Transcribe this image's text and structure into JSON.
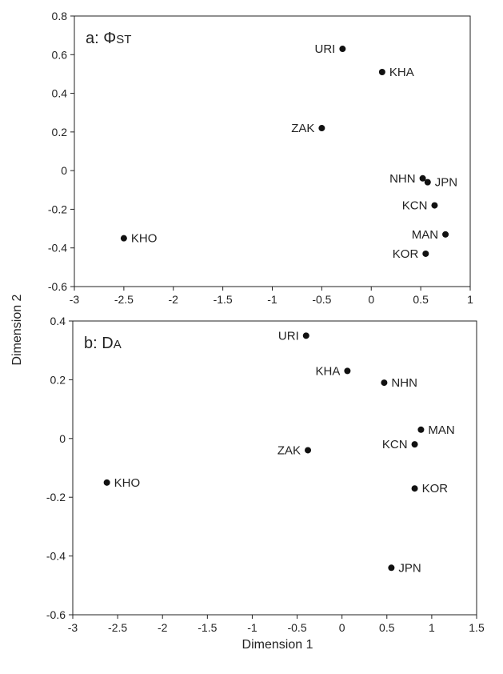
{
  "figure": {
    "ylabel": "Dimension 2",
    "xlabel": "Dimension 1"
  },
  "chart_data": [
    {
      "type": "scatter",
      "panel_label": "a: Φ",
      "panel_label_sub": "ST",
      "xlim": [
        -3,
        1
      ],
      "ylim": [
        -0.6,
        0.8
      ],
      "x_ticks": [
        -3,
        -2.5,
        -2,
        -1.5,
        -1,
        -0.5,
        0,
        0.5,
        1
      ],
      "x_tick_labels": [
        "-3",
        "-2.5",
        "-2",
        "-1.5",
        "-1",
        "-0.5",
        "0",
        "0.5",
        "1"
      ],
      "y_ticks": [
        -0.6,
        -0.4,
        -0.2,
        0,
        0.2,
        0.4,
        0.6,
        0.8
      ],
      "y_tick_labels": [
        "-0.6",
        "-0.4",
        "-0.2",
        "0",
        "0.2",
        "0.4",
        "0.6",
        "0.8"
      ],
      "grid": false,
      "points": [
        {
          "label": "URI",
          "x": -0.29,
          "y": 0.63,
          "label_side": "left"
        },
        {
          "label": "KHA",
          "x": 0.11,
          "y": 0.51,
          "label_side": "right"
        },
        {
          "label": "ZAK",
          "x": -0.5,
          "y": 0.22,
          "label_side": "left"
        },
        {
          "label": "NHN",
          "x": 0.52,
          "y": -0.04,
          "label_side": "left"
        },
        {
          "label": "JPN",
          "x": 0.57,
          "y": -0.06,
          "label_side": "right"
        },
        {
          "label": "KCN",
          "x": 0.64,
          "y": -0.18,
          "label_side": "left"
        },
        {
          "label": "MAN",
          "x": 0.75,
          "y": -0.33,
          "label_side": "left"
        },
        {
          "label": "KOR",
          "x": 0.55,
          "y": -0.43,
          "label_side": "left"
        },
        {
          "label": "KHO",
          "x": -2.5,
          "y": -0.35,
          "label_side": "right"
        }
      ]
    },
    {
      "type": "scatter",
      "panel_label": "b: D",
      "panel_label_sub": "A",
      "xlim": [
        -3,
        1.5
      ],
      "ylim": [
        -0.6,
        0.4
      ],
      "x_ticks": [
        -3,
        -2.5,
        -2,
        -1.5,
        -1,
        -0.5,
        0,
        0.5,
        1,
        1.5
      ],
      "x_tick_labels": [
        "-3",
        "-2.5",
        "-2",
        "-1.5",
        "-1",
        "-0.5",
        "0",
        "0.5",
        "1",
        "1.5"
      ],
      "y_ticks": [
        -0.6,
        -0.4,
        -0.2,
        0,
        0.2,
        0.4
      ],
      "y_tick_labels": [
        "-0.6",
        "-0.4",
        "-0.2",
        "0",
        "0.2",
        "0.4"
      ],
      "grid": false,
      "points": [
        {
          "label": "URI",
          "x": -0.4,
          "y": 0.35,
          "label_side": "left"
        },
        {
          "label": "KHA",
          "x": 0.06,
          "y": 0.23,
          "label_side": "left"
        },
        {
          "label": "NHN",
          "x": 0.47,
          "y": 0.19,
          "label_side": "right"
        },
        {
          "label": "MAN",
          "x": 0.88,
          "y": 0.03,
          "label_side": "right"
        },
        {
          "label": "KCN",
          "x": 0.81,
          "y": -0.02,
          "label_side": "left"
        },
        {
          "label": "ZAK",
          "x": -0.38,
          "y": -0.04,
          "label_side": "left"
        },
        {
          "label": "KOR",
          "x": 0.81,
          "y": -0.17,
          "label_side": "right"
        },
        {
          "label": "KHO",
          "x": -2.62,
          "y": -0.15,
          "label_side": "right"
        },
        {
          "label": "JPN",
          "x": 0.55,
          "y": -0.44,
          "label_side": "right"
        }
      ]
    }
  ]
}
